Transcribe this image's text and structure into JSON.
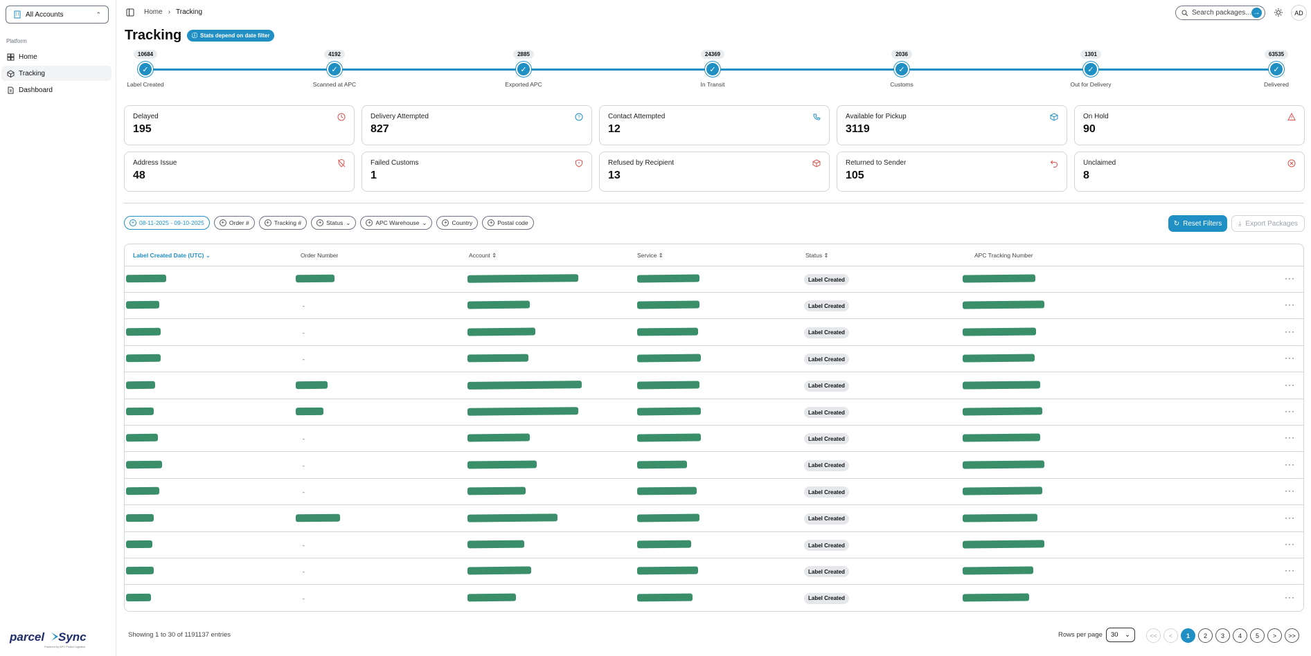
{
  "sidebar": {
    "account_selector": "All Accounts",
    "section_label": "Platform",
    "items": [
      {
        "label": "Home"
      },
      {
        "label": "Tracking"
      },
      {
        "label": "Dashboard"
      }
    ],
    "logo_text": "parcelSync",
    "logo_tagline": "Powered by APC Postal Logistics"
  },
  "topbar": {
    "breadcrumb": [
      "Home",
      "Tracking"
    ],
    "search_placeholder": "Search packages...",
    "avatar_initials": "AD"
  },
  "page": {
    "title": "Tracking",
    "stats_badge": "Stats depend on date filter"
  },
  "tracker": {
    "steps": [
      {
        "count": "10684",
        "label": "Label Created"
      },
      {
        "count": "4192",
        "label": "Scanned at APC"
      },
      {
        "count": "2885",
        "label": "Exported APC"
      },
      {
        "count": "24369",
        "label": "In Transit"
      },
      {
        "count": "2036",
        "label": "Customs"
      },
      {
        "count": "1301",
        "label": "Out for Delivery"
      },
      {
        "count": "63535",
        "label": "Delivered"
      }
    ]
  },
  "cards": [
    {
      "title": "Delayed",
      "value": "195",
      "icon": "clock-icon"
    },
    {
      "title": "Delivery Attempted",
      "value": "827",
      "icon": "help-circle-icon"
    },
    {
      "title": "Contact Attempted",
      "value": "12",
      "icon": "phone-icon"
    },
    {
      "title": "Available for Pickup",
      "value": "3119",
      "icon": "box-icon"
    },
    {
      "title": "On Hold",
      "value": "90",
      "icon": "warning-icon"
    },
    {
      "title": "Address Issue",
      "value": "48",
      "icon": "map-pin-off-icon"
    },
    {
      "title": "Failed Customs",
      "value": "1",
      "icon": "shield-alert-icon"
    },
    {
      "title": "Refused by Recipient",
      "value": "13",
      "icon": "package-x-icon"
    },
    {
      "title": "Returned to Sender",
      "value": "105",
      "icon": "undo-icon"
    },
    {
      "title": "Unclaimed",
      "value": "8",
      "icon": "circle-x-icon"
    }
  ],
  "filters": {
    "chips": [
      "08-11-2025 - 09-10-2025",
      "Order #",
      "Tracking #",
      "Status",
      "APC Warehouse",
      "Country",
      "Postal code"
    ],
    "reset_label": "Reset Filters",
    "export_label": "Export Packages"
  },
  "table": {
    "columns": [
      "Label Created Date (UTC)",
      "Order Number",
      "Account",
      "Service",
      "Status",
      "APC Tracking Number"
    ],
    "rows": [
      {
        "order": "",
        "status": "Label Created"
      },
      {
        "order": "-",
        "status": "Label Created"
      },
      {
        "order": "-",
        "status": "Label Created"
      },
      {
        "order": "-",
        "status": "Label Created"
      },
      {
        "order": "",
        "status": "Label Created"
      },
      {
        "order": "",
        "status": "Label Created"
      },
      {
        "order": "-",
        "status": "Label Created"
      },
      {
        "order": "-",
        "status": "Label Created"
      },
      {
        "order": "-",
        "status": "Label Created"
      },
      {
        "order": "",
        "status": "Label Created"
      },
      {
        "order": "-",
        "status": "Label Created"
      },
      {
        "order": "-",
        "status": "Label Created"
      },
      {
        "order": "-",
        "status": "Label Created"
      }
    ]
  },
  "footer": {
    "showing": "Showing 1 to 30 of 1191137 entries",
    "rows_per_page_label": "Rows per page",
    "rows_per_page_value": "30",
    "pages": [
      "<<",
      "<",
      "1",
      "2",
      "3",
      "4",
      "5",
      ">",
      ">>"
    ],
    "current_page": "1"
  },
  "colors": {
    "accent": "#1f8fc4",
    "redaction": "#3a8f6a",
    "border": "#d1d5db"
  }
}
